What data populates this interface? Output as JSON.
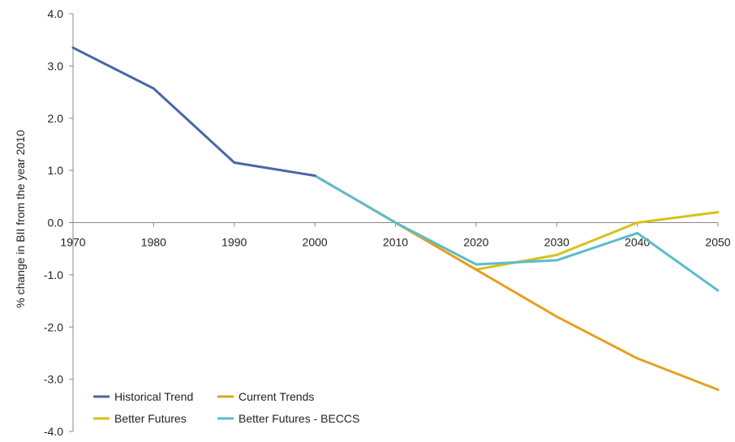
{
  "chart_data": {
    "type": "line",
    "ylabel": "% change in BII from the year 2010",
    "xlabel": "",
    "xlim": [
      1970,
      2050
    ],
    "ylim": [
      -4.0,
      4.0
    ],
    "x_ticks": [
      "1970",
      "1980",
      "1990",
      "2000",
      "2010",
      "2020",
      "2030",
      "2040",
      "2050"
    ],
    "y_ticks": [
      "4.0",
      "3.0",
      "2.0",
      "1.0",
      "0.0",
      "-1.0",
      "-2.0",
      "-3.0",
      "-4.0"
    ],
    "grid": false,
    "legend_position": "bottom-left",
    "series": [
      {
        "name": "Better Futures",
        "color": "#d4c21c",
        "points": [
          [
            2000,
            0.9
          ],
          [
            2005,
            0.45
          ],
          [
            2010,
            0.0
          ],
          [
            2015,
            -0.45
          ],
          [
            2020,
            -0.9
          ],
          [
            2030,
            -0.62
          ],
          [
            2040,
            0.0
          ],
          [
            2050,
            0.2
          ]
        ]
      },
      {
        "name": "Current Trends",
        "color": "#e6a020",
        "points": [
          [
            2000,
            0.9
          ],
          [
            2005,
            0.45
          ],
          [
            2010,
            0.0
          ],
          [
            2020,
            -0.9
          ],
          [
            2030,
            -1.8
          ],
          [
            2040,
            -2.6
          ],
          [
            2050,
            -3.2
          ]
        ]
      },
      {
        "name": "Better Futures - BECCS",
        "color": "#5bbccc",
        "points": [
          [
            2000,
            0.9
          ],
          [
            2005,
            0.45
          ],
          [
            2010,
            0.0
          ],
          [
            2020,
            -0.8
          ],
          [
            2030,
            -0.72
          ],
          [
            2040,
            -0.2
          ],
          [
            2050,
            -1.3
          ]
        ]
      },
      {
        "name": "Historical Trend",
        "color": "#4a66a6",
        "points": [
          [
            1970,
            3.35
          ],
          [
            1980,
            2.57
          ],
          [
            1990,
            1.15
          ],
          [
            2000,
            0.9
          ]
        ]
      }
    ],
    "legend": [
      {
        "name": "Historical Trend",
        "color": "#4a66a6"
      },
      {
        "name": "Current Trends",
        "color": "#e6a020"
      },
      {
        "name": "Better Futures",
        "color": "#d4c21c"
      },
      {
        "name": "Better Futures - BECCS",
        "color": "#5bbccc"
      }
    ]
  }
}
